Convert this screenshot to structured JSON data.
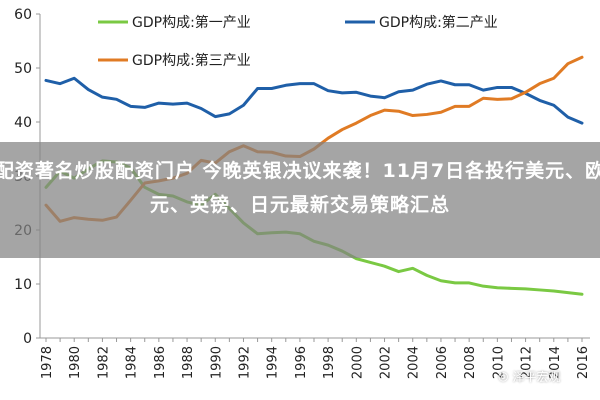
{
  "chart_data": {
    "type": "line",
    "categories": [
      "1978",
      "1980",
      "1982",
      "1984",
      "1986",
      "1988",
      "1990",
      "1992",
      "1994",
      "1996",
      "1998",
      "2000",
      "2002",
      "2004",
      "2006",
      "2008",
      "2010",
      "2012",
      "2014",
      "2016"
    ],
    "x": [
      1978,
      1979,
      1980,
      1981,
      1982,
      1983,
      1984,
      1985,
      1986,
      1987,
      1988,
      1989,
      1990,
      1991,
      1992,
      1993,
      1994,
      1995,
      1996,
      1997,
      1998,
      1999,
      2000,
      2001,
      2002,
      2003,
      2004,
      2005,
      2006,
      2007,
      2008,
      2009,
      2010,
      2011,
      2012,
      2013,
      2014,
      2015,
      2016
    ],
    "series": [
      {
        "name": "GDP构成:第一产业",
        "color": "#7ac943",
        "values": [
          27.9,
          30.9,
          29.6,
          31.3,
          32.8,
          32.6,
          31.5,
          27.9,
          26.6,
          26.3,
          25.2,
          24.6,
          26.6,
          24.0,
          21.3,
          19.3,
          19.5,
          19.6,
          19.3,
          17.9,
          17.2,
          16.1,
          14.7,
          14.0,
          13.3,
          12.3,
          12.9,
          11.6,
          10.6,
          10.2,
          10.2,
          9.6,
          9.3,
          9.2,
          9.1,
          8.9,
          8.7,
          8.4,
          8.1
        ]
      },
      {
        "name": "GDP构成:第二产业",
        "color": "#1f5fa8",
        "values": [
          47.7,
          47.1,
          48.1,
          46.0,
          44.6,
          44.2,
          42.9,
          42.7,
          43.5,
          43.3,
          43.5,
          42.5,
          41.0,
          41.5,
          43.1,
          46.2,
          46.2,
          46.8,
          47.1,
          47.1,
          45.8,
          45.4,
          45.5,
          44.8,
          44.5,
          45.6,
          45.9,
          47.0,
          47.6,
          46.9,
          46.9,
          45.9,
          46.4,
          46.4,
          45.3,
          44.0,
          43.1,
          40.9,
          39.8
        ]
      },
      {
        "name": "GDP构成:第三产业",
        "color": "#e07b24",
        "values": [
          24.6,
          21.6,
          22.3,
          22.0,
          21.8,
          22.4,
          25.5,
          28.7,
          29.1,
          29.6,
          30.5,
          32.9,
          32.4,
          34.5,
          35.6,
          34.5,
          34.4,
          33.7,
          33.6,
          35.0,
          37.0,
          38.6,
          39.8,
          41.2,
          42.2,
          42.0,
          41.2,
          41.4,
          41.8,
          42.9,
          42.9,
          44.4,
          44.2,
          44.3,
          45.5,
          47.1,
          48.1,
          50.8,
          52.0
        ]
      }
    ],
    "ylim": [
      0,
      60
    ],
    "yticks": [
      0,
      10,
      20,
      30,
      40,
      50,
      60
    ],
    "grid": false,
    "legend": "top",
    "title": "",
    "xlabel": "",
    "ylabel": ""
  },
  "overlay": {
    "headline": "配资著名炒股配资门户 今晚英银决议来袭！11月7日各投行美元、欧元、英镑、日元最新交易策略汇总"
  },
  "watermark": {
    "text": "泽平宏观",
    "icon": "wechat-icon"
  }
}
